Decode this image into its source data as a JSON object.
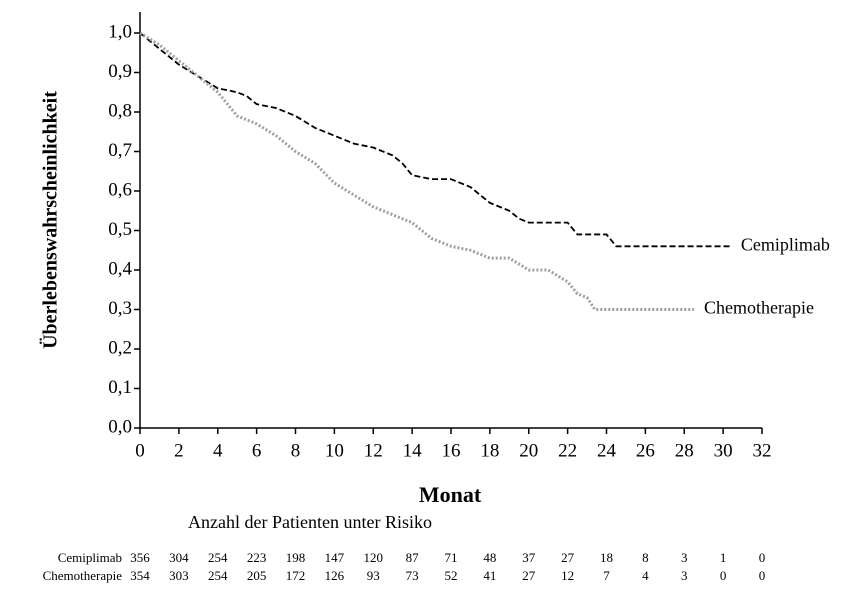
{
  "chart_data": {
    "type": "line",
    "ylabel": "Überlebenswahrscheinlichkeit",
    "xlabel": "Monat",
    "xlim": [
      0,
      32
    ],
    "xticks": [
      0,
      2,
      4,
      6,
      8,
      10,
      12,
      14,
      16,
      18,
      20,
      22,
      24,
      26,
      28,
      30,
      32
    ],
    "ylim": [
      0,
      1
    ],
    "yticks": [
      {
        "value": 0,
        "label": "0,0"
      },
      {
        "value": 0.1,
        "label": "0,1"
      },
      {
        "value": 0.2,
        "label": "0,2"
      },
      {
        "value": 0.3,
        "label": "0,3"
      },
      {
        "value": 0.4,
        "label": "0,4"
      },
      {
        "value": 0.5,
        "label": "0,5"
      },
      {
        "value": 0.6,
        "label": "0,6"
      },
      {
        "value": 0.7,
        "label": "0,7"
      },
      {
        "value": 0.8,
        "label": "0,8"
      },
      {
        "value": 0.9,
        "label": "0,9"
      },
      {
        "value": 1,
        "label": "1,0"
      }
    ],
    "series": [
      {
        "name": "Cemiplimab",
        "color": "#000000",
        "dash": "6 3",
        "x": [
          0,
          1,
          2,
          3,
          4,
          5,
          5.5,
          6,
          7,
          8,
          9,
          10,
          11,
          12,
          13,
          13.5,
          14,
          15,
          16,
          17,
          18,
          19,
          19.5,
          20,
          21,
          22,
          22.5,
          23,
          24,
          24.5,
          26,
          28,
          30.4
        ],
        "values": [
          1.0,
          0.96,
          0.92,
          0.89,
          0.86,
          0.85,
          0.84,
          0.82,
          0.81,
          0.79,
          0.76,
          0.74,
          0.72,
          0.71,
          0.69,
          0.67,
          0.64,
          0.63,
          0.63,
          0.61,
          0.57,
          0.55,
          0.53,
          0.52,
          0.52,
          0.52,
          0.49,
          0.49,
          0.49,
          0.46,
          0.46,
          0.46,
          0.46
        ]
      },
      {
        "name": "Chemotherapie",
        "color": "#a0a0a0",
        "dash": "2 2",
        "x": [
          0,
          1,
          2,
          3,
          4,
          5,
          6,
          7,
          8,
          9,
          10,
          11,
          12,
          13,
          14,
          15,
          16,
          17,
          18,
          19,
          20,
          21,
          22,
          22.5,
          23,
          23.4,
          25,
          27,
          28.5
        ],
        "values": [
          1.0,
          0.97,
          0.93,
          0.89,
          0.85,
          0.79,
          0.77,
          0.74,
          0.7,
          0.67,
          0.62,
          0.59,
          0.56,
          0.54,
          0.52,
          0.48,
          0.46,
          0.45,
          0.43,
          0.43,
          0.4,
          0.4,
          0.37,
          0.34,
          0.33,
          0.3,
          0.3,
          0.3,
          0.3
        ]
      }
    ],
    "risk_table": {
      "title": "Anzahl der Patienten unter Risiko",
      "rows": [
        {
          "name": "Cemiplimab",
          "values": [
            356,
            304,
            254,
            223,
            198,
            147,
            120,
            87,
            71,
            48,
            37,
            27,
            18,
            8,
            3,
            1,
            0
          ]
        },
        {
          "name": "Chemotherapie",
          "values": [
            354,
            303,
            254,
            205,
            172,
            126,
            93,
            73,
            52,
            41,
            27,
            12,
            7,
            4,
            3,
            0,
            0
          ]
        }
      ]
    }
  }
}
